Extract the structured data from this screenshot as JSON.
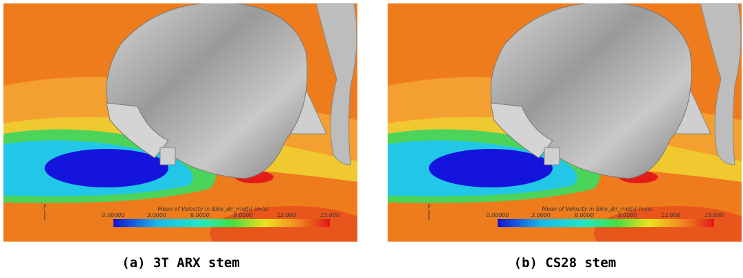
{
  "panels": [
    {
      "caption": "(a) 3T ARX stem",
      "axis_label": "y",
      "colorbar": {
        "title": "Mean of Velocity in Bike_dir_mid[i] (m/s)",
        "ticks": [
          "0.00000",
          "3.0000",
          "6.0000",
          "9.0000",
          "12.000",
          "15.000"
        ]
      }
    },
    {
      "caption": "(b) CS28 stem",
      "axis_label": "y",
      "colorbar": {
        "title": "Mean of Velocity in Bike_dir_mid[i] (m/s)",
        "ticks": [
          "0.00000",
          "3.0000",
          "6.0000",
          "9.0000",
          "12.000",
          "15.000"
        ]
      }
    }
  ]
}
